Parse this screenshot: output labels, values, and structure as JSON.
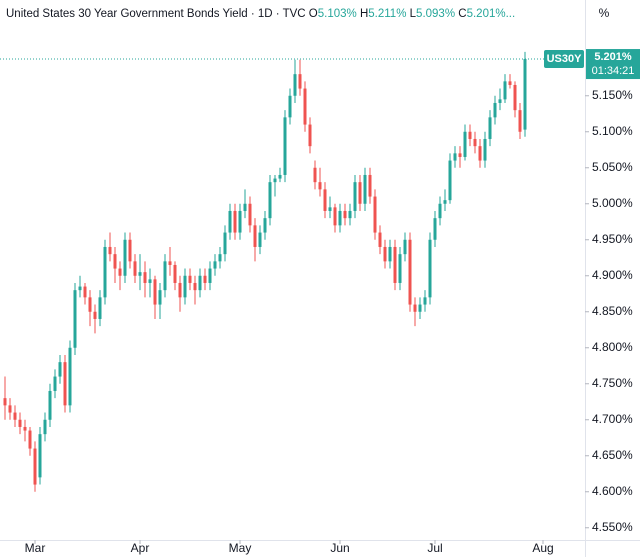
{
  "chart_data": {
    "type": "candlestick",
    "title": "United States 30 Year Government Bonds Yield · 1D · TVC",
    "legend_values": [
      {
        "key": "O",
        "label": "5.103%"
      },
      {
        "key": "H",
        "label": "5.211%"
      },
      {
        "key": "L",
        "label": "5.093%"
      },
      {
        "key": "C",
        "label": "5.201%..."
      }
    ],
    "axis_unit": "%",
    "symbol": "US30Y",
    "last_price": {
      "value": 5.201,
      "label": "5.201%"
    },
    "countdown": "01:34:21",
    "up_color": "#26a69a",
    "down_color": "#ef5350",
    "xlim": [
      -1,
      116
    ],
    "xticks": [
      {
        "value": 6,
        "label": "Mar"
      },
      {
        "value": 27,
        "label": "Apr"
      },
      {
        "value": 47,
        "label": "May"
      },
      {
        "value": 67,
        "label": "Jun"
      },
      {
        "value": 86,
        "label": "Jul"
      },
      {
        "value": 107.6,
        "label": "Aug"
      }
    ],
    "ylim": [
      4.533,
      5.283
    ],
    "yticks": [
      {
        "value": 4.55,
        "label": "4.550%"
      },
      {
        "value": 4.6,
        "label": "4.600%"
      },
      {
        "value": 4.65,
        "label": "4.650%"
      },
      {
        "value": 4.7,
        "label": "4.700%"
      },
      {
        "value": 4.75,
        "label": "4.750%"
      },
      {
        "value": 4.8,
        "label": "4.800%"
      },
      {
        "value": 4.85,
        "label": "4.850%"
      },
      {
        "value": 4.9,
        "label": "4.900%"
      },
      {
        "value": 4.95,
        "label": "4.950%"
      },
      {
        "value": 5.0,
        "label": "5.000%"
      },
      {
        "value": 5.05,
        "label": "5.050%"
      },
      {
        "value": 5.1,
        "label": "5.100%"
      },
      {
        "value": 5.15,
        "label": "5.150%"
      }
    ],
    "open": [
      4.73,
      4.72,
      4.71,
      4.7,
      4.69,
      4.685,
      4.66,
      4.62,
      4.68,
      4.7,
      4.74,
      4.76,
      4.78,
      4.72,
      4.8,
      4.88,
      4.885,
      4.87,
      4.85,
      4.84,
      4.87,
      4.94,
      4.93,
      4.91,
      4.9,
      4.95,
      4.92,
      4.9,
      4.905,
      4.89,
      4.895,
      4.86,
      4.88,
      4.92,
      4.915,
      4.89,
      4.87,
      4.9,
      4.89,
      4.88,
      4.9,
      4.89,
      4.91,
      4.92,
      4.93,
      4.96,
      4.99,
      4.96,
      4.99,
      5.0,
      4.97,
      4.94,
      4.96,
      4.98,
      5.03,
      5.035,
      5.04,
      5.12,
      5.15,
      5.18,
      5.16,
      5.11,
      5.05,
      5.03,
      5.02,
      4.99,
      4.995,
      4.97,
      4.99,
      4.98,
      4.99,
      5.03,
      5.0,
      5.04,
      5.01,
      4.96,
      4.94,
      4.92,
      4.94,
      4.89,
      4.93,
      4.95,
      4.86,
      4.85,
      4.86,
      4.87,
      4.95,
      4.98,
      5.0,
      5.005,
      5.06,
      5.07,
      5.065,
      5.1,
      5.09,
      5.08,
      5.06,
      5.09,
      5.12,
      5.14,
      5.145,
      5.17,
      5.165,
      5.13,
      5.103
    ],
    "high": [
      4.76,
      4.73,
      4.72,
      4.71,
      4.7,
      4.69,
      4.67,
      4.69,
      4.71,
      4.75,
      4.77,
      4.79,
      4.79,
      4.81,
      4.89,
      4.9,
      4.89,
      4.88,
      4.86,
      4.88,
      4.95,
      4.96,
      4.94,
      4.92,
      4.96,
      4.96,
      4.93,
      4.93,
      4.92,
      4.91,
      4.9,
      4.89,
      4.93,
      4.94,
      4.92,
      4.9,
      4.91,
      4.91,
      4.9,
      4.91,
      4.91,
      4.92,
      4.93,
      4.94,
      4.97,
      5.0,
      5.0,
      5.0,
      5.02,
      5.01,
      4.98,
      4.97,
      4.99,
      5.04,
      5.04,
      5.05,
      5.13,
      5.16,
      5.2,
      5.2,
      5.17,
      5.12,
      5.06,
      5.05,
      5.03,
      5.01,
      5.0,
      5.0,
      5.0,
      5.0,
      5.04,
      5.04,
      5.05,
      5.05,
      5.02,
      4.97,
      4.95,
      4.95,
      4.95,
      4.94,
      4.96,
      4.96,
      4.87,
      4.87,
      4.88,
      4.96,
      4.99,
      5.01,
      5.02,
      5.07,
      5.08,
      5.08,
      5.11,
      5.11,
      5.1,
      5.09,
      5.1,
      5.13,
      5.15,
      5.16,
      5.18,
      5.18,
      5.17,
      5.14,
      5.211
    ],
    "low": [
      4.7,
      4.7,
      4.69,
      4.68,
      4.67,
      4.65,
      4.6,
      4.61,
      4.67,
      4.69,
      4.73,
      4.75,
      4.71,
      4.71,
      4.79,
      4.87,
      4.86,
      4.83,
      4.82,
      4.83,
      4.86,
      4.92,
      4.89,
      4.88,
      4.89,
      4.91,
      4.89,
      4.88,
      4.87,
      4.87,
      4.84,
      4.84,
      4.87,
      4.9,
      4.88,
      4.85,
      4.86,
      4.88,
      4.86,
      4.87,
      4.88,
      4.88,
      4.9,
      4.91,
      4.92,
      4.95,
      4.95,
      4.95,
      4.98,
      4.96,
      4.92,
      4.93,
      4.95,
      4.97,
      5.01,
      5.03,
      5.03,
      5.11,
      5.14,
      5.15,
      5.1,
      5.07,
      5.02,
      5.01,
      4.98,
      4.98,
      4.96,
      4.96,
      4.97,
      4.97,
      4.98,
      4.99,
      4.99,
      5.0,
      4.95,
      4.93,
      4.91,
      4.91,
      4.88,
      4.88,
      4.92,
      4.85,
      4.83,
      4.84,
      4.85,
      4.86,
      4.94,
      4.97,
      4.99,
      5.0,
      5.05,
      5.05,
      5.06,
      5.08,
      5.07,
      5.05,
      5.05,
      5.08,
      5.11,
      5.13,
      5.14,
      5.16,
      5.12,
      5.09,
      5.093
    ],
    "close": [
      4.72,
      4.71,
      4.7,
      4.69,
      4.685,
      4.66,
      4.61,
      4.68,
      4.7,
      4.74,
      4.76,
      4.78,
      4.72,
      4.8,
      4.88,
      4.885,
      4.87,
      4.85,
      4.84,
      4.87,
      4.94,
      4.93,
      4.91,
      4.9,
      4.95,
      4.92,
      4.9,
      4.905,
      4.89,
      4.895,
      4.86,
      4.88,
      4.92,
      4.915,
      4.89,
      4.87,
      4.9,
      4.89,
      4.88,
      4.9,
      4.89,
      4.91,
      4.92,
      4.93,
      4.96,
      4.99,
      4.96,
      4.99,
      5.0,
      4.97,
      4.94,
      4.96,
      4.98,
      5.03,
      5.035,
      5.04,
      5.12,
      5.15,
      5.18,
      5.16,
      5.11,
      5.08,
      5.03,
      5.02,
      4.99,
      4.995,
      4.97,
      4.99,
      4.98,
      4.99,
      5.03,
      5.0,
      5.04,
      5.01,
      4.96,
      4.94,
      4.92,
      4.94,
      4.89,
      4.93,
      4.95,
      4.86,
      4.85,
      4.86,
      4.87,
      4.95,
      4.98,
      5.0,
      5.005,
      5.06,
      5.07,
      5.065,
      5.1,
      5.09,
      5.08,
      5.06,
      5.09,
      5.12,
      5.14,
      5.145,
      5.17,
      5.165,
      5.13,
      5.1,
      5.201
    ]
  }
}
